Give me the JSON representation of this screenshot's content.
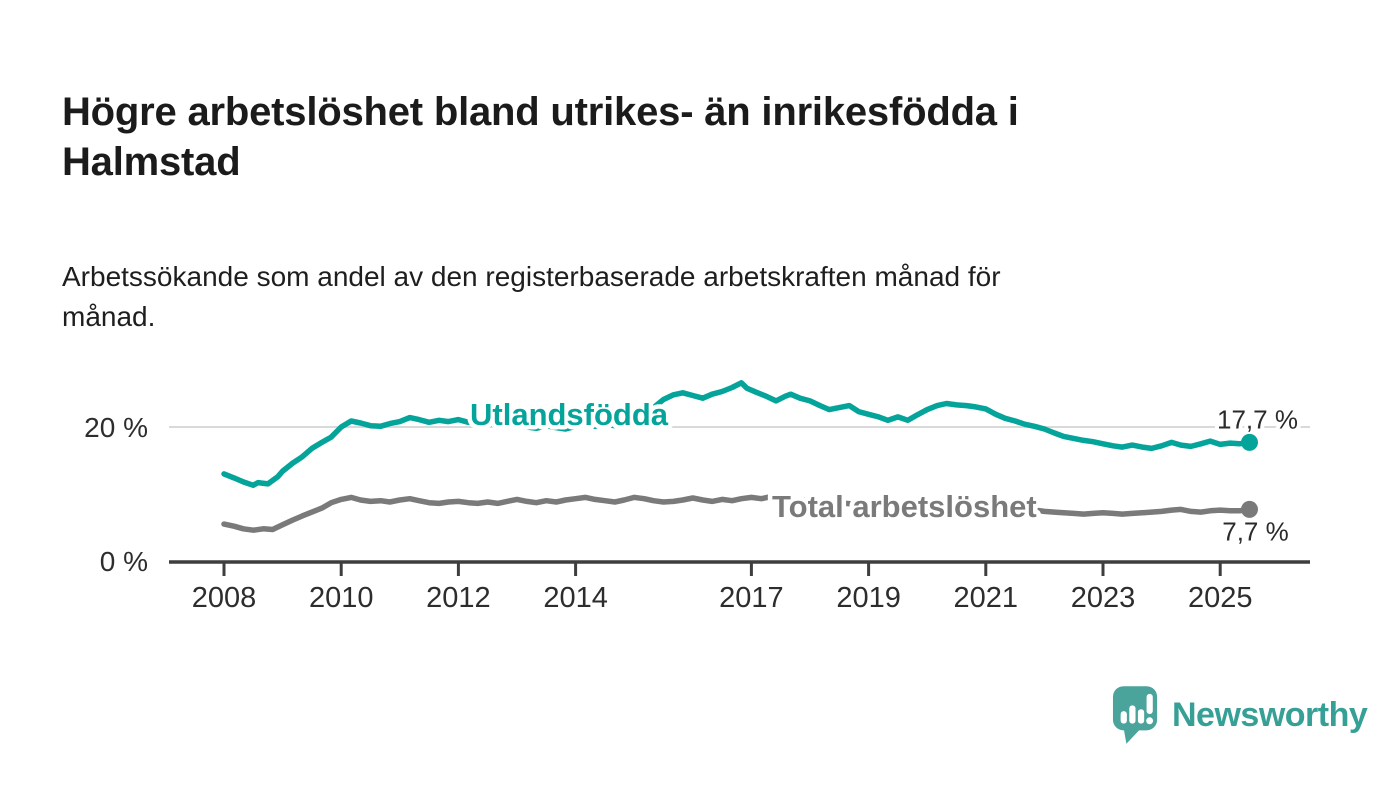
{
  "header": {
    "title": "Högre arbetslöshet bland utrikes- än inrikesfödda i\nHalmstad",
    "subtitle": "Arbetssökande som andel av den registerbaserade arbetskraften månad för\nmånad."
  },
  "footer": {
    "brand": "Newsworthy",
    "brand_color": "#37a096"
  },
  "colors": {
    "series_foreign_born": "#04a49a",
    "series_total": "#7a7a7a",
    "axis": "#3e3e3e",
    "gridline": "#d9d9d9",
    "tick_label": "#2d2d2d",
    "value_label": "#2b2b2b"
  },
  "chart_data": {
    "type": "line",
    "title": "Högre arbetslöshet bland utrikes- än inrikesfödda i Halmstad",
    "subtitle": "Arbetssökande som andel av den registerbaserade arbetskraften månad för månad.",
    "x_axis": {
      "ticks": [
        2008,
        2010,
        2012,
        2014,
        2017,
        2019,
        2021,
        2023,
        2025
      ],
      "range": [
        2007.1,
        2026.5
      ],
      "unit": "year"
    },
    "y_axis": {
      "ticks": [
        {
          "value": 20,
          "label": "20 %"
        },
        {
          "value": 0,
          "label": "0 %"
        }
      ],
      "range": [
        0,
        30
      ],
      "gridlines": [
        20
      ],
      "unit": "%"
    },
    "legend_position": "inline-labels",
    "series": [
      {
        "name": "Utlandsfödda",
        "color": "#04a49a",
        "end_label": "17,7 %",
        "end_value": 17.7,
        "points": [
          [
            2008.0,
            13.0
          ],
          [
            2008.17,
            12.4
          ],
          [
            2008.33,
            11.8
          ],
          [
            2008.5,
            11.3
          ],
          [
            2008.58,
            11.7
          ],
          [
            2008.75,
            11.5
          ],
          [
            2008.92,
            12.6
          ],
          [
            2009.0,
            13.4
          ],
          [
            2009.17,
            14.6
          ],
          [
            2009.33,
            15.5
          ],
          [
            2009.5,
            16.8
          ],
          [
            2009.67,
            17.7
          ],
          [
            2009.83,
            18.5
          ],
          [
            2010.0,
            20.0
          ],
          [
            2010.17,
            20.9
          ],
          [
            2010.33,
            20.6
          ],
          [
            2010.5,
            20.2
          ],
          [
            2010.67,
            20.1
          ],
          [
            2010.83,
            20.5
          ],
          [
            2011.0,
            20.8
          ],
          [
            2011.17,
            21.4
          ],
          [
            2011.33,
            21.1
          ],
          [
            2011.5,
            20.7
          ],
          [
            2011.67,
            21.0
          ],
          [
            2011.83,
            20.8
          ],
          [
            2012.0,
            21.1
          ],
          [
            2012.17,
            20.7
          ],
          [
            2012.33,
            20.9
          ],
          [
            2012.5,
            20.6
          ],
          [
            2012.67,
            20.3
          ],
          [
            2012.83,
            20.1
          ],
          [
            2013.0,
            20.4
          ],
          [
            2013.17,
            20.0
          ],
          [
            2013.33,
            19.8
          ],
          [
            2013.5,
            20.2
          ],
          [
            2013.67,
            19.9
          ],
          [
            2013.83,
            19.7
          ],
          [
            2014.0,
            20.1
          ],
          [
            2014.17,
            20.4
          ],
          [
            2014.33,
            20.1
          ],
          [
            2014.5,
            20.4
          ],
          [
            2014.67,
            20.2
          ],
          [
            2014.83,
            20.6
          ],
          [
            2015.0,
            20.9
          ],
          [
            2015.17,
            21.6
          ],
          [
            2015.33,
            22.9
          ],
          [
            2015.5,
            24.1
          ],
          [
            2015.67,
            24.8
          ],
          [
            2015.83,
            25.1
          ],
          [
            2016.0,
            24.7
          ],
          [
            2016.17,
            24.3
          ],
          [
            2016.33,
            24.9
          ],
          [
            2016.5,
            25.3
          ],
          [
            2016.67,
            25.9
          ],
          [
            2016.83,
            26.6
          ],
          [
            2016.92,
            25.8
          ],
          [
            2017.08,
            25.2
          ],
          [
            2017.25,
            24.6
          ],
          [
            2017.42,
            23.9
          ],
          [
            2017.58,
            24.6
          ],
          [
            2017.67,
            24.9
          ],
          [
            2017.83,
            24.3
          ],
          [
            2018.0,
            23.9
          ],
          [
            2018.17,
            23.2
          ],
          [
            2018.33,
            22.6
          ],
          [
            2018.5,
            22.9
          ],
          [
            2018.67,
            23.2
          ],
          [
            2018.83,
            22.3
          ],
          [
            2019.0,
            21.9
          ],
          [
            2019.17,
            21.5
          ],
          [
            2019.33,
            21.0
          ],
          [
            2019.5,
            21.5
          ],
          [
            2019.67,
            21.0
          ],
          [
            2019.83,
            21.8
          ],
          [
            2020.0,
            22.6
          ],
          [
            2020.17,
            23.2
          ],
          [
            2020.33,
            23.5
          ],
          [
            2020.5,
            23.3
          ],
          [
            2020.67,
            23.2
          ],
          [
            2020.83,
            23.0
          ],
          [
            2021.0,
            22.7
          ],
          [
            2021.17,
            21.9
          ],
          [
            2021.33,
            21.3
          ],
          [
            2021.5,
            20.9
          ],
          [
            2021.67,
            20.4
          ],
          [
            2021.83,
            20.1
          ],
          [
            2022.0,
            19.7
          ],
          [
            2022.17,
            19.1
          ],
          [
            2022.33,
            18.6
          ],
          [
            2022.5,
            18.3
          ],
          [
            2022.67,
            18.0
          ],
          [
            2022.83,
            17.8
          ],
          [
            2023.0,
            17.5
          ],
          [
            2023.17,
            17.2
          ],
          [
            2023.33,
            17.0
          ],
          [
            2023.5,
            17.3
          ],
          [
            2023.67,
            17.0
          ],
          [
            2023.83,
            16.8
          ],
          [
            2024.0,
            17.2
          ],
          [
            2024.17,
            17.7
          ],
          [
            2024.33,
            17.3
          ],
          [
            2024.5,
            17.1
          ],
          [
            2024.67,
            17.5
          ],
          [
            2024.83,
            17.9
          ],
          [
            2025.0,
            17.4
          ],
          [
            2025.17,
            17.6
          ],
          [
            2025.33,
            17.5
          ],
          [
            2025.5,
            17.7
          ]
        ]
      },
      {
        "name": "Total arbetslöshet",
        "color": "#7a7a7a",
        "end_label": "7,7 %",
        "end_value": 7.7,
        "points": [
          [
            2008.0,
            5.5
          ],
          [
            2008.17,
            5.2
          ],
          [
            2008.33,
            4.8
          ],
          [
            2008.5,
            4.6
          ],
          [
            2008.67,
            4.8
          ],
          [
            2008.83,
            4.7
          ],
          [
            2009.0,
            5.4
          ],
          [
            2009.17,
            6.1
          ],
          [
            2009.33,
            6.7
          ],
          [
            2009.5,
            7.3
          ],
          [
            2009.67,
            7.9
          ],
          [
            2009.83,
            8.7
          ],
          [
            2010.0,
            9.2
          ],
          [
            2010.17,
            9.5
          ],
          [
            2010.33,
            9.1
          ],
          [
            2010.5,
            8.9
          ],
          [
            2010.67,
            9.0
          ],
          [
            2010.83,
            8.8
          ],
          [
            2011.0,
            9.1
          ],
          [
            2011.17,
            9.3
          ],
          [
            2011.33,
            9.0
          ],
          [
            2011.5,
            8.7
          ],
          [
            2011.67,
            8.6
          ],
          [
            2011.83,
            8.8
          ],
          [
            2012.0,
            8.9
          ],
          [
            2012.17,
            8.7
          ],
          [
            2012.33,
            8.6
          ],
          [
            2012.5,
            8.8
          ],
          [
            2012.67,
            8.6
          ],
          [
            2012.83,
            8.9
          ],
          [
            2013.0,
            9.2
          ],
          [
            2013.17,
            8.9
          ],
          [
            2013.33,
            8.7
          ],
          [
            2013.5,
            9.0
          ],
          [
            2013.67,
            8.8
          ],
          [
            2013.83,
            9.1
          ],
          [
            2014.0,
            9.3
          ],
          [
            2014.17,
            9.5
          ],
          [
            2014.33,
            9.2
          ],
          [
            2014.5,
            9.0
          ],
          [
            2014.67,
            8.8
          ],
          [
            2014.83,
            9.1
          ],
          [
            2015.0,
            9.5
          ],
          [
            2015.17,
            9.3
          ],
          [
            2015.33,
            9.0
          ],
          [
            2015.5,
            8.8
          ],
          [
            2015.67,
            8.9
          ],
          [
            2015.83,
            9.1
          ],
          [
            2016.0,
            9.4
          ],
          [
            2016.17,
            9.1
          ],
          [
            2016.33,
            8.9
          ],
          [
            2016.5,
            9.2
          ],
          [
            2016.67,
            9.0
          ],
          [
            2016.83,
            9.3
          ],
          [
            2017.0,
            9.5
          ],
          [
            2017.17,
            9.3
          ],
          [
            2017.33,
            9.6
          ],
          [
            2017.5,
            9.4
          ],
          [
            2017.75,
            9.2
          ],
          [
            2018.0,
            9.0
          ],
          [
            2018.25,
            8.8
          ],
          [
            2018.5,
            8.7
          ],
          [
            2018.75,
            8.5
          ],
          [
            2019.0,
            8.4
          ],
          [
            2019.25,
            8.3
          ],
          [
            2019.5,
            8.2
          ],
          [
            2019.75,
            8.4
          ],
          [
            2020.0,
            8.6
          ],
          [
            2020.25,
            8.8
          ],
          [
            2020.5,
            8.9
          ],
          [
            2020.75,
            8.8
          ],
          [
            2021.0,
            8.6
          ],
          [
            2021.25,
            8.3
          ],
          [
            2021.5,
            8.0
          ],
          [
            2021.75,
            7.7
          ],
          [
            2022.0,
            7.4
          ],
          [
            2022.17,
            7.3
          ],
          [
            2022.33,
            7.2
          ],
          [
            2022.5,
            7.1
          ],
          [
            2022.67,
            7.0
          ],
          [
            2022.83,
            7.1
          ],
          [
            2023.0,
            7.2
          ],
          [
            2023.17,
            7.1
          ],
          [
            2023.33,
            7.0
          ],
          [
            2023.5,
            7.1
          ],
          [
            2023.67,
            7.2
          ],
          [
            2023.83,
            7.3
          ],
          [
            2024.0,
            7.4
          ],
          [
            2024.17,
            7.6
          ],
          [
            2024.33,
            7.7
          ],
          [
            2024.5,
            7.4
          ],
          [
            2024.67,
            7.3
          ],
          [
            2024.83,
            7.5
          ],
          [
            2025.0,
            7.6
          ],
          [
            2025.17,
            7.5
          ],
          [
            2025.33,
            7.5
          ],
          [
            2025.5,
            7.7
          ]
        ]
      }
    ]
  }
}
